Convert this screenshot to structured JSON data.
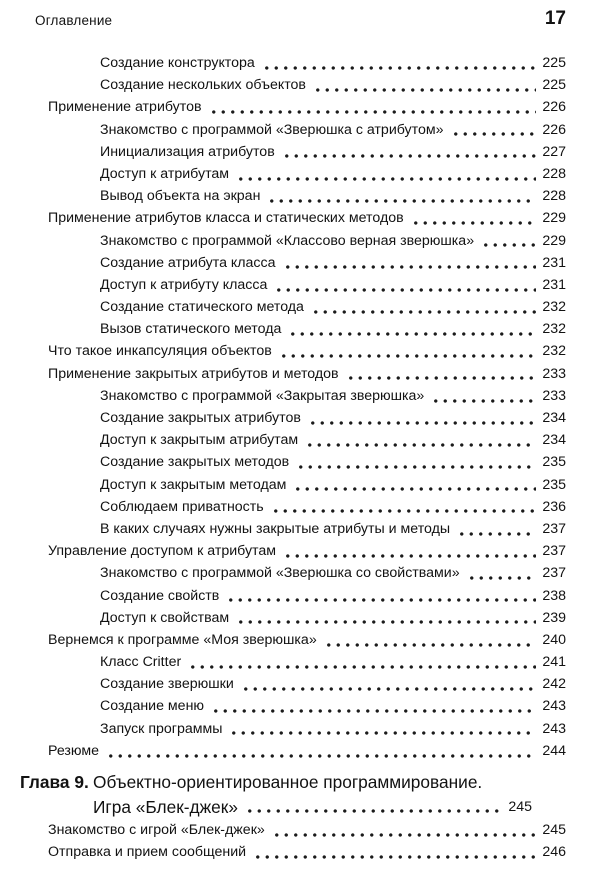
{
  "colors": {
    "background": "#ffffff",
    "text": "#121212"
  },
  "header": {
    "title": "Оглавление",
    "page_number": "17"
  },
  "toc": {
    "entries": [
      {
        "level": 2,
        "label": "Создание конструктора",
        "page": "225"
      },
      {
        "level": 2,
        "label": "Создание нескольких объектов",
        "page": "225"
      },
      {
        "level": 1,
        "label": "Применение атрибутов",
        "page": "226"
      },
      {
        "level": 2,
        "label": "Знакомство с программой «Зверюшка с атрибутом»",
        "page": "226"
      },
      {
        "level": 2,
        "label": "Инициализация атрибутов",
        "page": "227"
      },
      {
        "level": 2,
        "label": "Доступ к атрибутам",
        "page": "228"
      },
      {
        "level": 2,
        "label": "Вывод объекта на экран",
        "page": "228"
      },
      {
        "level": 1,
        "label": "Применение атрибутов класса и статических методов",
        "page": "229"
      },
      {
        "level": 2,
        "label": "Знакомство с программой «Классово верная зверюшка»",
        "page": "229"
      },
      {
        "level": 2,
        "label": "Создание атрибута класса",
        "page": "231"
      },
      {
        "level": 2,
        "label": "Доступ к атрибуту класса",
        "page": "231"
      },
      {
        "level": 2,
        "label": "Создание статического метода",
        "page": "232"
      },
      {
        "level": 2,
        "label": "Вызов статического метода",
        "page": "232"
      },
      {
        "level": 1,
        "label": "Что такое инкапсуляция объектов",
        "page": "232"
      },
      {
        "level": 1,
        "label": "Применение закрытых атрибутов и методов",
        "page": "233"
      },
      {
        "level": 2,
        "label": "Знакомство с программой «Закрытая зверюшка»",
        "page": "233"
      },
      {
        "level": 2,
        "label": "Создание закрытых атрибутов",
        "page": "234"
      },
      {
        "level": 2,
        "label": "Доступ к закрытым атрибутам",
        "page": "234"
      },
      {
        "level": 2,
        "label": "Создание закрытых методов",
        "page": "235"
      },
      {
        "level": 2,
        "label": "Доступ к закрытым методам",
        "page": "235"
      },
      {
        "level": 2,
        "label": "Соблюдаем приватность",
        "page": "236"
      },
      {
        "level": 2,
        "label": "В каких случаях нужны закрытые атрибуты и методы",
        "page": "237"
      },
      {
        "level": 1,
        "label": "Управление доступом к атрибутам",
        "page": "237"
      },
      {
        "level": 2,
        "label": "Знакомство с программой «Зверюшка со свойствами»",
        "page": "237"
      },
      {
        "level": 2,
        "label": "Создание свойств",
        "page": "238"
      },
      {
        "level": 2,
        "label": "Доступ к свойствам",
        "page": "239"
      },
      {
        "level": 1,
        "label": "Вернемся к программе «Моя зверюшка»",
        "page": "240"
      },
      {
        "level": 2,
        "label": "Класс Critter",
        "page": "241"
      },
      {
        "level": 2,
        "label": "Создание зверюшки",
        "page": "242"
      },
      {
        "level": 2,
        "label": "Создание меню",
        "page": "243"
      },
      {
        "level": 2,
        "label": "Запуск программы",
        "page": "243"
      },
      {
        "level": 1,
        "label": "Резюме",
        "page": "244"
      }
    ],
    "chapter": {
      "label": "Глава 9.",
      "title_line1": "Объектно-ориентированное программирование.",
      "title_line2": "Игра «Блек-джек»",
      "page": "245"
    },
    "chapter_entries": [
      {
        "level": 1,
        "label": "Знакомство с игрой «Блек-джек»",
        "page": "245"
      },
      {
        "level": 1,
        "label": "Отправка и прием сообщений",
        "page": "246"
      }
    ]
  }
}
